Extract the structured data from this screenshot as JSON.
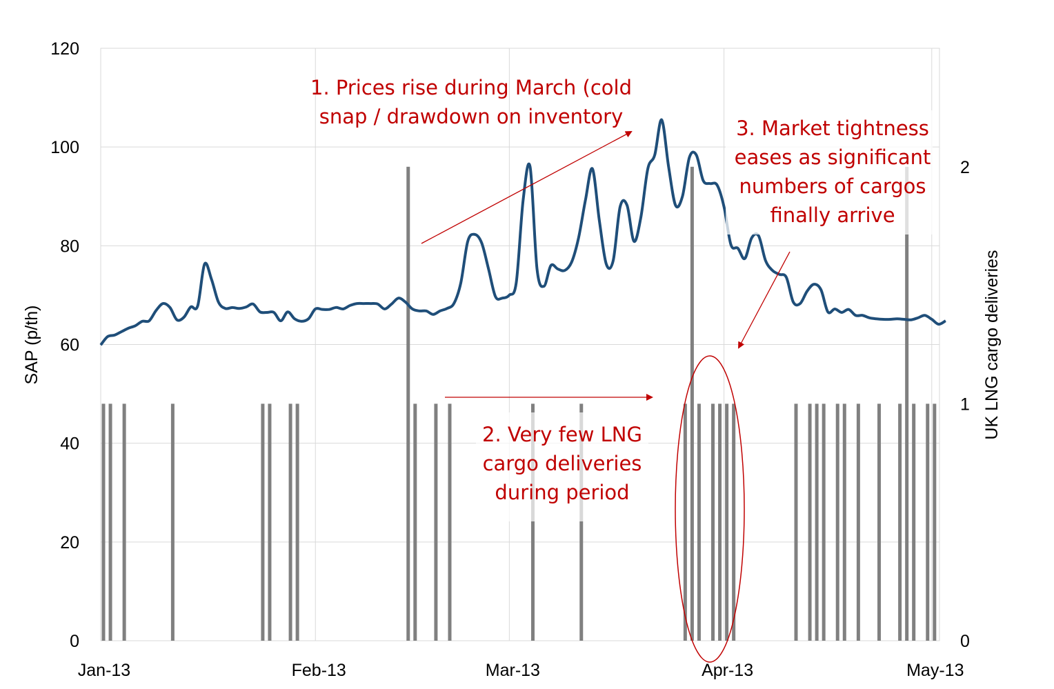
{
  "chart_data": {
    "type": "line+bar",
    "x_unit": "days since 1-Jan-13",
    "xlim": [
      0,
      121
    ],
    "x_ticks": [
      {
        "day": 0,
        "label": "Jan-13"
      },
      {
        "day": 31,
        "label": "Feb-13"
      },
      {
        "day": 59,
        "label": "Mar-13"
      },
      {
        "day": 90,
        "label": "Apr-13"
      },
      {
        "day": 120,
        "label": "May-13"
      }
    ],
    "y_left": {
      "label": "SAP (p/th)",
      "ylim": [
        0,
        120
      ],
      "ticks": [
        "0",
        "20",
        "40",
        "60",
        "80",
        "100",
        "120"
      ]
    },
    "y_right": {
      "label": "UK LNG cargo deliveries",
      "ylim": [
        0,
        2.5
      ],
      "ticks": [
        "0",
        "1",
        "2"
      ]
    },
    "grid": true,
    "colors": {
      "line": "#1F4E79",
      "bars": "#808080",
      "annotation": "#C00000",
      "grid": "#D9D9D9"
    },
    "series": [
      {
        "name": "SAP (p/th)",
        "type": "line",
        "axis": "left",
        "values": [
          59.9,
          61.6,
          61.9,
          62.6,
          63.3,
          63.8,
          64.7,
          64.8,
          66.9,
          68.3,
          67.5,
          65.0,
          65.5,
          67.6,
          67.8,
          76.3,
          73.2,
          68.6,
          67.3,
          67.5,
          67.3,
          67.6,
          68.2,
          66.6,
          66.5,
          66.5,
          64.8,
          66.6,
          65.2,
          64.7,
          65.2,
          67.2,
          67.1,
          67.1,
          67.5,
          67.2,
          67.9,
          68.3,
          68.3,
          68.3,
          68.2,
          67.2,
          68.2,
          69.4,
          68.6,
          67.2,
          66.8,
          66.8,
          66.1,
          66.8,
          67.3,
          68.3,
          72.5,
          80.9,
          82.3,
          80.6,
          75.3,
          69.7,
          69.4,
          70.0,
          72.5,
          89.3,
          96.0,
          75.3,
          71.8,
          76.0,
          75.3,
          75.0,
          76.7,
          81.6,
          89.3,
          95.6,
          85.1,
          76.3,
          77.0,
          87.9,
          88.2,
          80.9,
          85.8,
          95.6,
          98.4,
          105.5,
          96.0,
          88.2,
          90.0,
          97.9,
          98.4,
          93.2,
          92.6,
          92.3,
          87.9,
          80.2,
          79.5,
          77.4,
          81.6,
          82.0,
          77.0,
          75.0,
          74.2,
          73.6,
          68.6,
          68.3,
          70.8,
          72.2,
          71.1,
          66.6,
          67.2,
          66.5,
          67.1,
          65.9,
          65.9,
          65.4,
          65.2,
          65.1,
          65.1,
          65.2,
          65.1,
          65.0,
          65.4,
          65.9,
          65.1,
          64.1,
          64.8
        ]
      },
      {
        "name": "UK LNG cargo deliveries",
        "type": "bar",
        "axis": "right",
        "points": [
          [
            0,
            1
          ],
          [
            1,
            1
          ],
          [
            3,
            1
          ],
          [
            10,
            1
          ],
          [
            23,
            1
          ],
          [
            24,
            1
          ],
          [
            27,
            1
          ],
          [
            28,
            1
          ],
          [
            44,
            2
          ],
          [
            45,
            1
          ],
          [
            48,
            1
          ],
          [
            50,
            1
          ],
          [
            62,
            1
          ],
          [
            69,
            1
          ],
          [
            84,
            1
          ],
          [
            85,
            2
          ],
          [
            86,
            1
          ],
          [
            88,
            1
          ],
          [
            89,
            1
          ],
          [
            90,
            1
          ],
          [
            91,
            1
          ],
          [
            100,
            1
          ],
          [
            102,
            1
          ],
          [
            103,
            1
          ],
          [
            104,
            1
          ],
          [
            106,
            1
          ],
          [
            107,
            1
          ],
          [
            109,
            1
          ],
          [
            112,
            1
          ],
          [
            115,
            1
          ],
          [
            116,
            2
          ],
          [
            117,
            1
          ],
          [
            119,
            1
          ],
          [
            120,
            1
          ]
        ]
      }
    ],
    "annotations": [
      {
        "id": "a1",
        "lines": [
          "1. Prices rise during March (cold",
          "snap / drawdown on inventory"
        ]
      },
      {
        "id": "a2",
        "lines": [
          "2.  Very few LNG",
          "cargo deliveries",
          "during period"
        ]
      },
      {
        "id": "a3",
        "lines": [
          "3. Market tightness",
          "eases as significant",
          "numbers of cargos",
          "finally arrive"
        ]
      }
    ]
  }
}
